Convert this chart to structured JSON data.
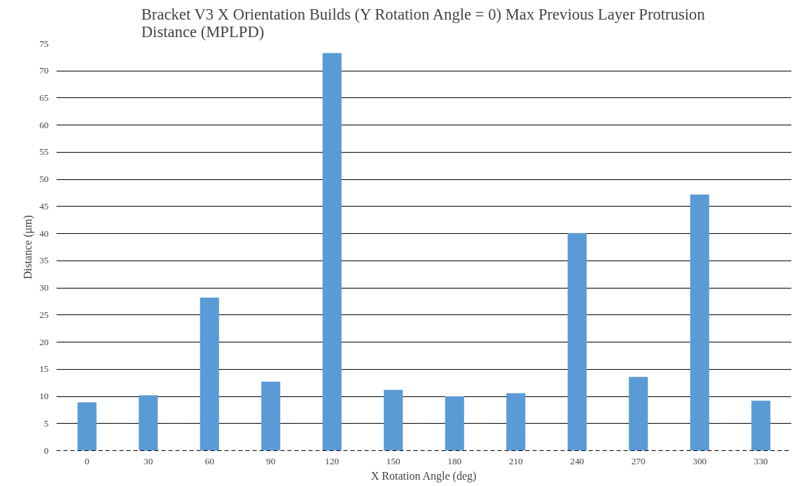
{
  "chart_data": {
    "type": "bar",
    "title": "Bracket V3 X Orientation Builds (Y Rotation Angle = 0) Max Previous Layer Protrusion Distance (MPLPD)",
    "xlabel": "X Rotation Angle (deg)",
    "ylabel": "Distance (μm)",
    "categories": [
      "0",
      "30",
      "60",
      "90",
      "120",
      "150",
      "180",
      "210",
      "240",
      "270",
      "300",
      "330"
    ],
    "values": [
      8.9,
      10.2,
      28.2,
      12.7,
      73.3,
      11.2,
      10.0,
      10.6,
      40.1,
      13.6,
      47.2,
      9.2
    ],
    "color": "#5b9bd5",
    "ylim": [
      0,
      75
    ],
    "yticks": [
      0,
      5,
      10,
      15,
      20,
      25,
      30,
      35,
      40,
      45,
      50,
      55,
      60,
      65,
      70,
      75
    ],
    "grid": "y"
  }
}
